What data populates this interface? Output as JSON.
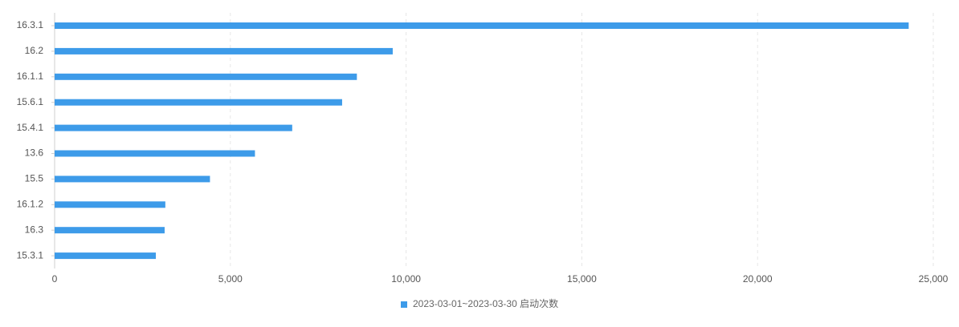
{
  "chart_data": {
    "type": "bar",
    "orientation": "horizontal",
    "categories": [
      "16.3.1",
      "16.2",
      "16.1.1",
      "15.6.1",
      "15.4.1",
      "13.6",
      "15.5",
      "16.1.2",
      "16.3",
      "15.3.1"
    ],
    "series": [
      {
        "name": "2023-03-01~2023-03-30 启动次数",
        "values": [
          24300,
          9620,
          8600,
          8180,
          6760,
          5700,
          4420,
          3150,
          3130,
          2880
        ],
        "color": "#3d9be9"
      }
    ],
    "xlim": [
      0,
      25000
    ],
    "x_ticks": [
      0,
      5000,
      10000,
      15000,
      20000,
      25000
    ],
    "x_tick_labels": [
      "0",
      "5,000",
      "10,000",
      "15,000",
      "20,000",
      "25,000"
    ],
    "grid": "vertical-dashed",
    "legend": {
      "placement": "bottom-center",
      "label": "2023-03-01~2023-03-30 启动次数",
      "color": "#3d9be9"
    },
    "colors": {
      "bar": "#3d9be9",
      "grid": "#e6e6e6",
      "axis": "#cfcfcf"
    }
  }
}
